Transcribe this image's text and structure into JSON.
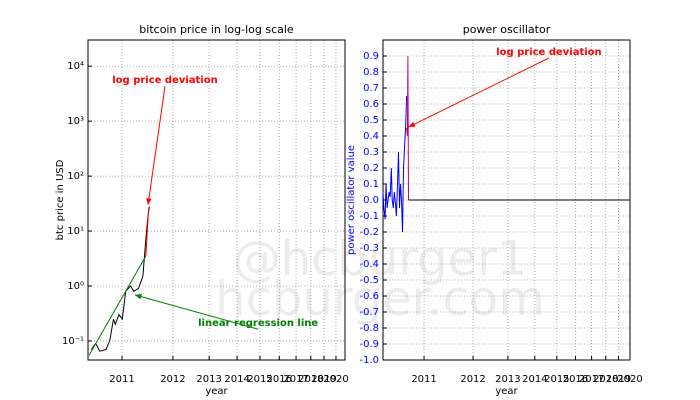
{
  "watermark": [
    "@hcburger1",
    "hcburger.com"
  ],
  "chart_data": [
    {
      "type": "line",
      "title": "bitcoin price in log-log scale",
      "xlabel": "year",
      "ylabel": "btc price in USD",
      "xlog": true,
      "ylog": true,
      "grid": true,
      "xlim": [
        555,
        4315
      ],
      "ylim": [
        0.045,
        30000
      ],
      "xticks": [
        {
          "value": 728,
          "label": "2011"
        },
        {
          "value": 1093,
          "label": "2012"
        },
        {
          "value": 1459,
          "label": "2013"
        },
        {
          "value": 1824,
          "label": "2014"
        },
        {
          "value": 2189,
          "label": "2015"
        },
        {
          "value": 2554,
          "label": "2016"
        },
        {
          "value": 2920,
          "label": "2017"
        },
        {
          "value": 3285,
          "label": "2018"
        },
        {
          "value": 3650,
          "label": "2019"
        },
        {
          "value": 4015,
          "label": "2020"
        }
      ],
      "yticks": [
        {
          "value": 0.1,
          "label": "10⁻¹"
        },
        {
          "value": 1,
          "label": "10⁰"
        },
        {
          "value": 10,
          "label": "10¹"
        },
        {
          "value": 100,
          "label": "10²"
        },
        {
          "value": 1000,
          "label": "10³"
        },
        {
          "value": 10000,
          "label": "10⁴"
        }
      ],
      "series": [
        {
          "color": "#000000",
          "x": [
            570,
            590,
            610,
            640,
            660,
            680,
            690,
            710,
            730,
            750,
            780,
            800,
            830,
            860,
            880,
            895,
            905
          ],
          "values": [
            0.07,
            0.09,
            0.065,
            0.07,
            0.1,
            0.25,
            0.2,
            0.3,
            0.25,
            0.8,
            1.0,
            0.8,
            0.9,
            1.5,
            7,
            18,
            28
          ]
        },
        {
          "color": "#008000",
          "x": [
            560,
            880
          ],
          "values": [
            0.055,
            3.5
          ]
        },
        {
          "color": "#ff0000",
          "x": [
            880,
            900
          ],
          "values": [
            3.5,
            25
          ]
        }
      ],
      "annotations": [
        {
          "text": "log price deviation",
          "color": "#ff0000",
          "x": 896,
          "y": 30,
          "text_x": 1026,
          "text_y": 5560
        },
        {
          "text": "linear regression line",
          "color": "#008000",
          "x": 807,
          "y": 0.69,
          "text_x": 2158,
          "text_y": 0.21
        }
      ]
    },
    {
      "type": "line",
      "title": "power oscillator",
      "xlabel": "year",
      "ylabel": "power oscillator value",
      "ylabel_color": "#0000ff",
      "xlog": true,
      "ylog": false,
      "grid": true,
      "xlim": [
        518,
        4015
      ],
      "ylim": [
        -1,
        1
      ],
      "xticks": [
        {
          "value": 728,
          "label": "2011"
        },
        {
          "value": 1093,
          "label": "2012"
        },
        {
          "value": 1459,
          "label": "2013"
        },
        {
          "value": 1824,
          "label": "2014"
        },
        {
          "value": 2189,
          "label": "2015"
        },
        {
          "value": 2554,
          "label": "2016"
        },
        {
          "value": 2920,
          "label": "2017"
        },
        {
          "value": 3285,
          "label": "2018"
        },
        {
          "value": 3650,
          "label": "2019"
        },
        {
          "value": 4015,
          "label": "2020"
        }
      ],
      "yticks": [
        0.9,
        0.8,
        0.7,
        0.6,
        0.5,
        0.4,
        0.3,
        0.2,
        0.1,
        {
          "value": 0,
          "label": "0.0"
        },
        -0.1,
        -0.2,
        -0.3,
        -0.4,
        -0.5,
        -0.6,
        -0.7,
        -0.8,
        -0.9,
        {
          "value": -1,
          "label": "-1.0"
        }
      ],
      "series": [
        {
          "color": "#0000ff",
          "x": [
            518,
            522,
            527,
            531,
            536,
            540,
            545,
            550,
            555,
            559,
            564,
            569,
            574,
            579,
            584,
            589,
            594,
            599,
            604,
            609,
            614,
            620,
            625,
            630
          ],
          "values": [
            0.05,
            -0.05,
            -0.12,
            0.1,
            -0.05,
            0.0,
            0.05,
            0.02,
            0.2,
            0.0,
            -0.05,
            0.05,
            -0.02,
            -0.1,
            0.1,
            0.3,
            -0.05,
            0.1,
            0.0,
            -0.2,
            0.2,
            0.35,
            0.45,
            0.65
          ]
        },
        {
          "color": "#cc0066",
          "x": [
            630,
            634,
            637,
            640
          ],
          "values": [
            0.45,
            0.4,
            0.9,
            0.0
          ]
        },
        {
          "color": "#000000",
          "x": [
            640,
            4015
          ],
          "values": [
            0,
            0
          ]
        }
      ],
      "annotations": [
        {
          "text": "log price deviation",
          "color": "#ff0000",
          "x": 640,
          "y": 0.456,
          "text_x": 2050,
          "text_y": 0.925
        }
      ]
    }
  ]
}
